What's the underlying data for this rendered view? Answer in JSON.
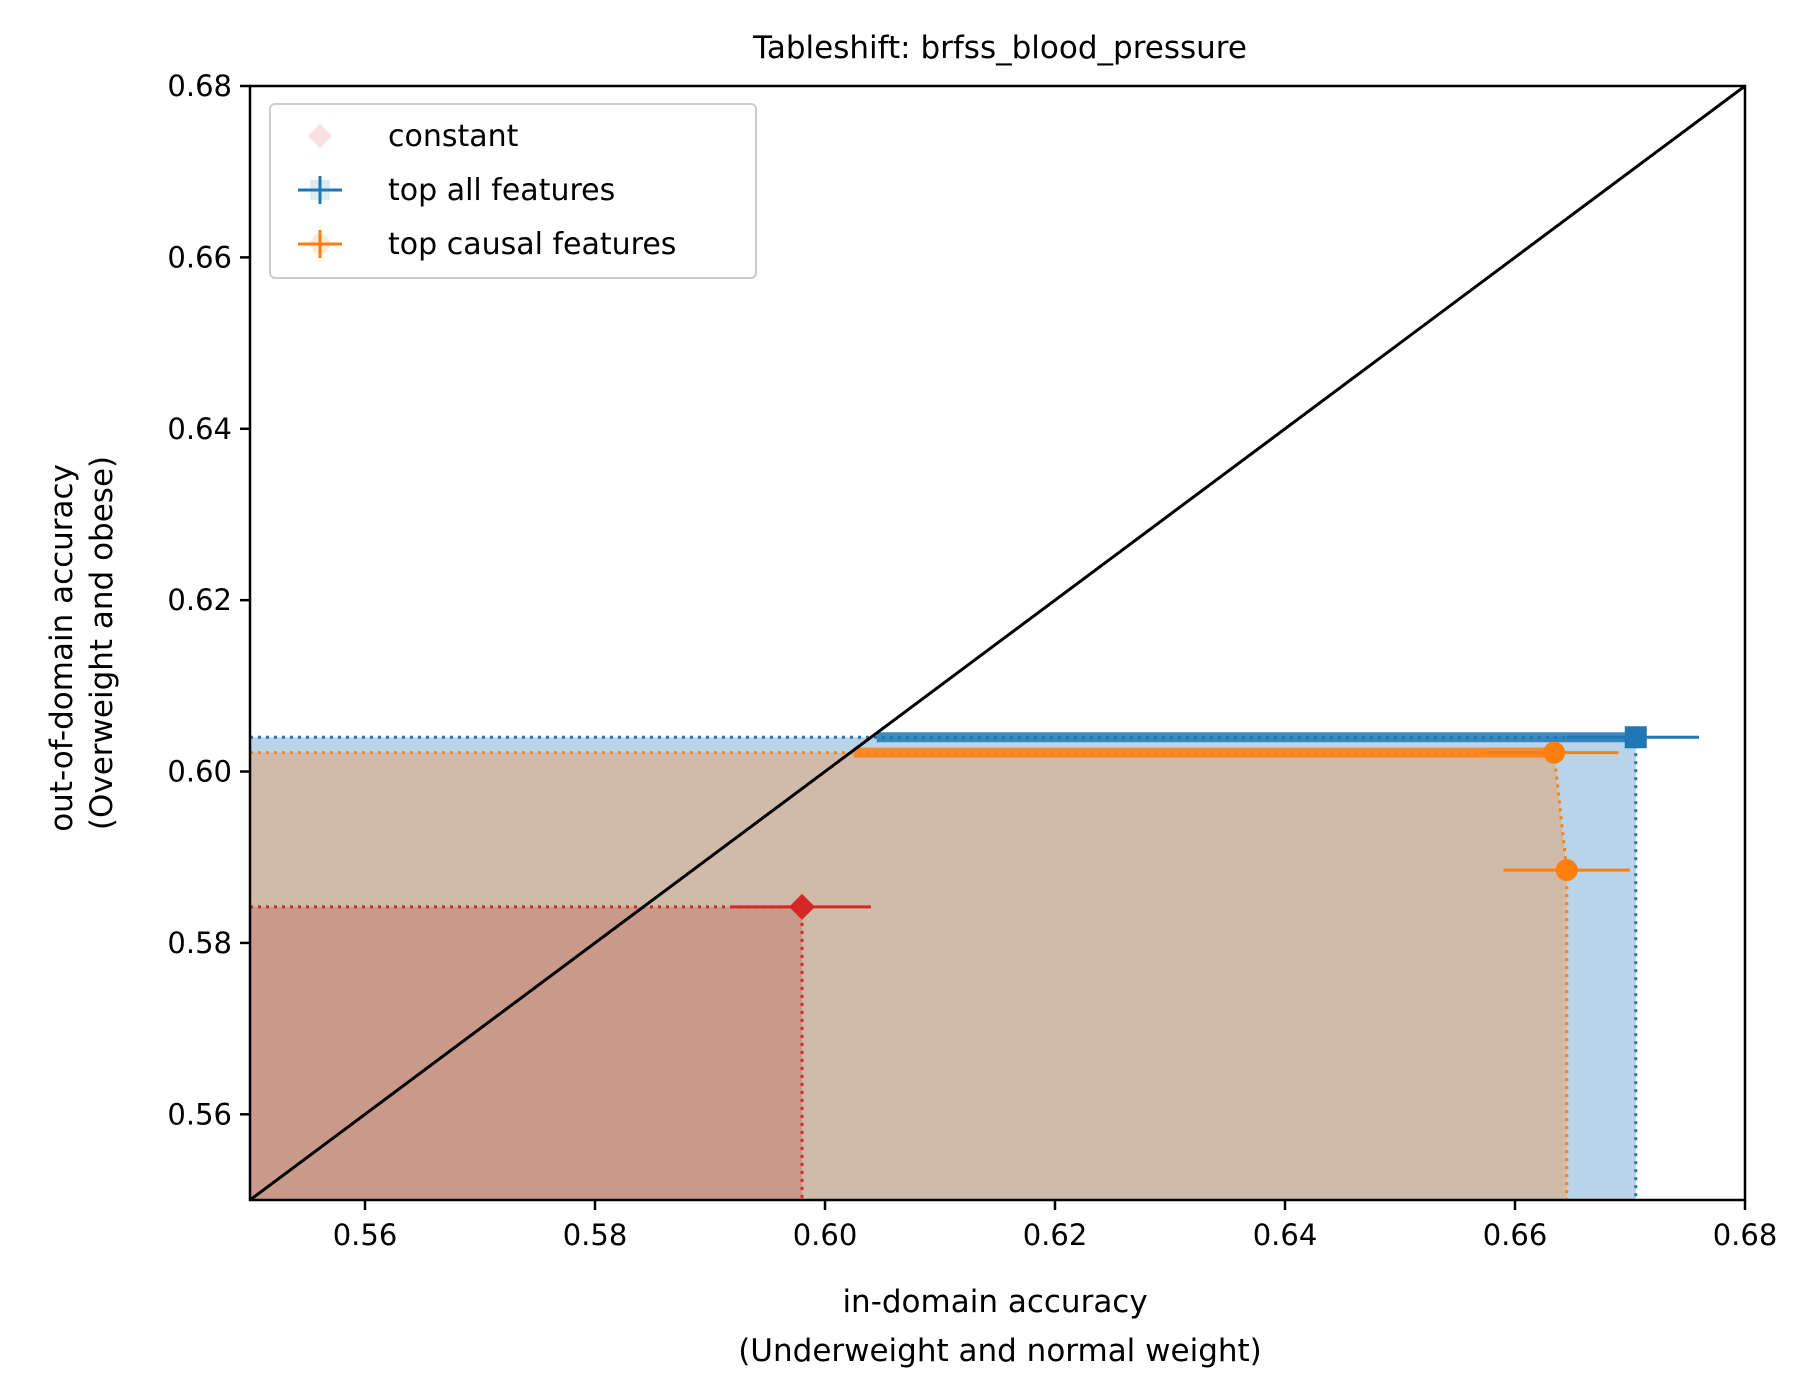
{
  "chart_data": {
    "type": "scatter",
    "title": "Tableshift: brfss_blood_pressure",
    "xlabel_lines": [
      "in-domain accuracy",
      "(Underweight and normal weight)"
    ],
    "ylabel_lines": [
      "out-of-domain accuracy",
      "(Overweight and obese)"
    ],
    "xlim": [
      0.55,
      0.68
    ],
    "ylim": [
      0.55,
      0.68
    ],
    "xticks": [
      "0.56",
      "0.58",
      "0.60",
      "0.62",
      "0.64",
      "0.66",
      "0.68"
    ],
    "yticks": [
      "0.56",
      "0.58",
      "0.60",
      "0.62",
      "0.64",
      "0.66",
      "0.68"
    ],
    "diagonal": true,
    "grid": false,
    "legend_position": "top-left",
    "series": [
      {
        "name": "constant",
        "marker": "diamond",
        "color": "#d62728",
        "points": [
          {
            "x": 0.598,
            "y": 0.5842,
            "xerr": [
              0.592,
              0.604
            ],
            "yerr": [
              0.5839,
              0.5845
            ]
          }
        ]
      },
      {
        "name": "top all features",
        "marker": "square",
        "color": "#1f77b4",
        "points": [
          {
            "x": 0.6705,
            "y": 0.604,
            "xerr": [
              0.6645,
              0.676
            ],
            "yerr": [
              0.6032,
              0.6047
            ]
          }
        ]
      },
      {
        "name": "top causal features",
        "marker": "circle",
        "color": "#ff7f0e",
        "points": [
          {
            "x": 0.6634,
            "y": 0.6022,
            "xerr": [
              0.6575,
              0.669
            ],
            "yerr": [
              0.6015,
              0.6029
            ]
          },
          {
            "x": 0.6645,
            "y": 0.5885,
            "xerr": [
              0.659,
              0.67
            ],
            "yerr": [
              0.5882,
              0.5888
            ]
          }
        ]
      }
    ],
    "colors": {
      "constant_fill": "#c9998a",
      "causal_fill": "#d0bba8",
      "all_fill": "#b9d4e8",
      "diagonal": "#000000"
    }
  }
}
